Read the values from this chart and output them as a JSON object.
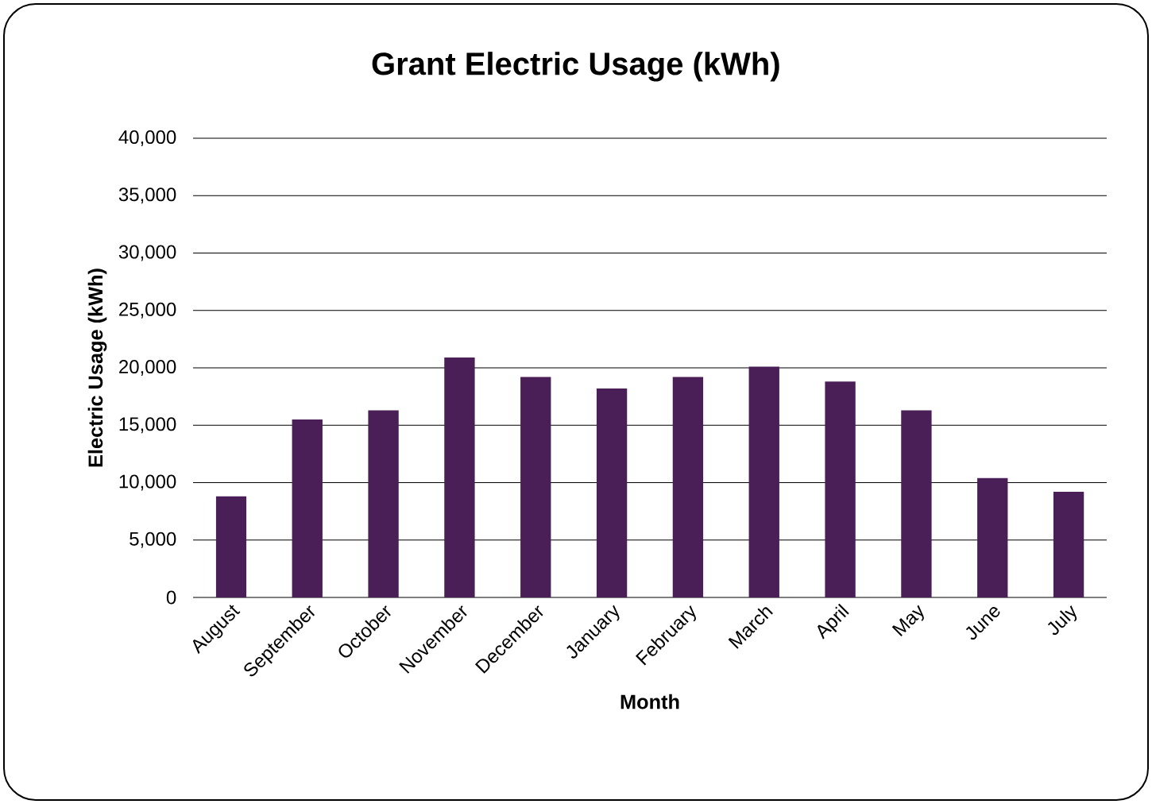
{
  "chart_data": {
    "type": "bar",
    "title": "Grant Electric Usage (kWh)",
    "xlabel": "Month",
    "ylabel": "Electric Usage (kWh)",
    "categories": [
      "August",
      "September",
      "October",
      "November",
      "December",
      "January",
      "February",
      "March",
      "April",
      "May",
      "June",
      "July"
    ],
    "values": [
      8800,
      15500,
      16300,
      20900,
      19200,
      18200,
      19200,
      20100,
      18800,
      16300,
      10400,
      9200
    ],
    "color": "#4a1f57",
    "ylim": [
      0,
      40000
    ],
    "yticks": [
      {
        "value": 0,
        "label": "0"
      },
      {
        "value": 5000,
        "label": "5,000"
      },
      {
        "value": 10000,
        "label": "10,000"
      },
      {
        "value": 15000,
        "label": "15,000"
      },
      {
        "value": 20000,
        "label": "20,000"
      },
      {
        "value": 25000,
        "label": "25,000"
      },
      {
        "value": 30000,
        "label": "30,000"
      },
      {
        "value": 35000,
        "label": "35,000"
      },
      {
        "value": 40000,
        "label": "40,000"
      }
    ],
    "grid": "y"
  }
}
